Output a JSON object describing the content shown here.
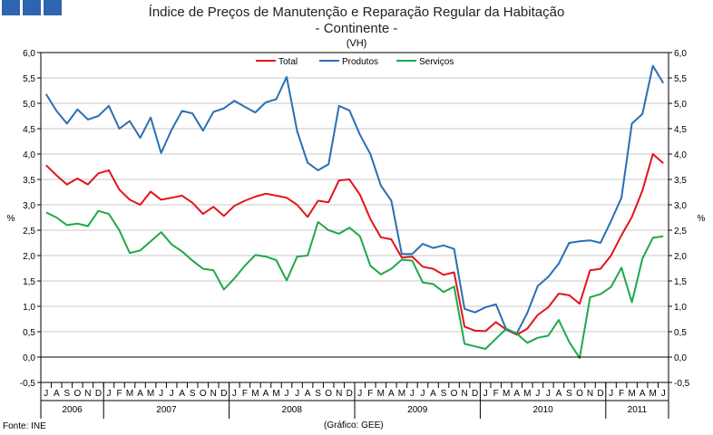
{
  "header": {
    "title_line1": "Índice de Preços de Manutenção e Reparação Regular da Habitação",
    "title_line2": "- Continente -",
    "unit": "(VH)"
  },
  "footer": {
    "source": "Fonte: INE",
    "credit": "(Gráfico: GEE)"
  },
  "colors": {
    "Total": "#e3141b",
    "Produtos": "#2a6fb3",
    "Serviços": "#1fa84a",
    "logo": "#2e64b0"
  },
  "chart_data": {
    "type": "line",
    "ylabel": "%",
    "ylim": [
      -0.5,
      6.0
    ],
    "yticks": [
      "-0,5",
      "0,0",
      "0,5",
      "1,0",
      "1,5",
      "2,0",
      "2,5",
      "3,0",
      "3,5",
      "4,0",
      "4,5",
      "5,0",
      "5,5",
      "6,0"
    ],
    "legend_position": "top-center",
    "months": [
      "J",
      "A",
      "S",
      "O",
      "N",
      "D",
      "J",
      "F",
      "M",
      "A",
      "M",
      "J",
      "J",
      "A",
      "S",
      "O",
      "N",
      "D",
      "J",
      "F",
      "M",
      "A",
      "M",
      "J",
      "J",
      "A",
      "S",
      "O",
      "N",
      "D",
      "J",
      "F",
      "M",
      "A",
      "M",
      "J",
      "J",
      "A",
      "S",
      "O",
      "N",
      "D",
      "J",
      "F",
      "M",
      "A",
      "M",
      "J",
      "J",
      "A",
      "S",
      "O",
      "N",
      "D",
      "J",
      "F",
      "M",
      "A",
      "M",
      "J"
    ],
    "years": [
      {
        "label": "2006",
        "months": 6
      },
      {
        "label": "2007",
        "months": 12
      },
      {
        "label": "2008",
        "months": 12
      },
      {
        "label": "2009",
        "months": 12
      },
      {
        "label": "2010",
        "months": 12
      },
      {
        "label": "2011",
        "months": 6
      }
    ],
    "series": [
      {
        "name": "Total",
        "values": [
          3.78,
          3.58,
          3.4,
          3.52,
          3.4,
          3.62,
          3.68,
          3.3,
          3.1,
          3.0,
          3.26,
          3.1,
          3.14,
          3.18,
          3.04,
          2.82,
          2.96,
          2.78,
          2.98,
          3.08,
          3.16,
          3.22,
          3.18,
          3.14,
          3.0,
          2.76,
          3.08,
          3.05,
          3.48,
          3.5,
          3.2,
          2.72,
          2.36,
          2.32,
          1.96,
          1.98,
          1.78,
          1.74,
          1.62,
          1.67,
          0.6,
          0.52,
          0.51,
          0.69,
          0.54,
          0.44,
          0.56,
          0.83,
          0.98,
          1.25,
          1.22,
          1.05,
          1.71,
          1.74,
          2.0,
          2.4,
          2.76,
          3.28,
          4.0,
          3.82
        ]
      },
      {
        "name": "Produtos",
        "values": [
          5.18,
          4.85,
          4.6,
          4.88,
          4.68,
          4.75,
          4.95,
          4.5,
          4.65,
          4.32,
          4.72,
          4.02,
          4.48,
          4.85,
          4.8,
          4.46,
          4.83,
          4.9,
          5.05,
          4.93,
          4.82,
          5.02,
          5.08,
          5.52,
          4.45,
          3.83,
          3.68,
          3.8,
          4.95,
          4.86,
          4.38,
          4.0,
          3.38,
          3.08,
          2.03,
          2.03,
          2.23,
          2.15,
          2.2,
          2.13,
          0.95,
          0.88,
          0.98,
          1.04,
          0.54,
          0.47,
          0.87,
          1.4,
          1.58,
          1.84,
          2.25,
          2.28,
          2.3,
          2.25,
          2.68,
          3.14,
          4.6,
          4.79,
          5.74,
          5.4
        ]
      },
      {
        "name": "Serviços",
        "values": [
          2.85,
          2.75,
          2.6,
          2.63,
          2.58,
          2.88,
          2.82,
          2.5,
          2.05,
          2.1,
          2.28,
          2.46,
          2.22,
          2.08,
          1.9,
          1.74,
          1.71,
          1.33,
          1.55,
          1.8,
          2.01,
          1.98,
          1.91,
          1.51,
          1.98,
          2.0,
          2.66,
          2.5,
          2.43,
          2.55,
          2.38,
          1.8,
          1.63,
          1.74,
          1.92,
          1.9,
          1.47,
          1.44,
          1.28,
          1.39,
          0.26,
          0.21,
          0.16,
          0.36,
          0.56,
          0.46,
          0.28,
          0.38,
          0.42,
          0.73,
          0.3,
          -0.02,
          1.18,
          1.24,
          1.38,
          1.76,
          1.08,
          1.94,
          2.35,
          2.38
        ]
      }
    ]
  }
}
